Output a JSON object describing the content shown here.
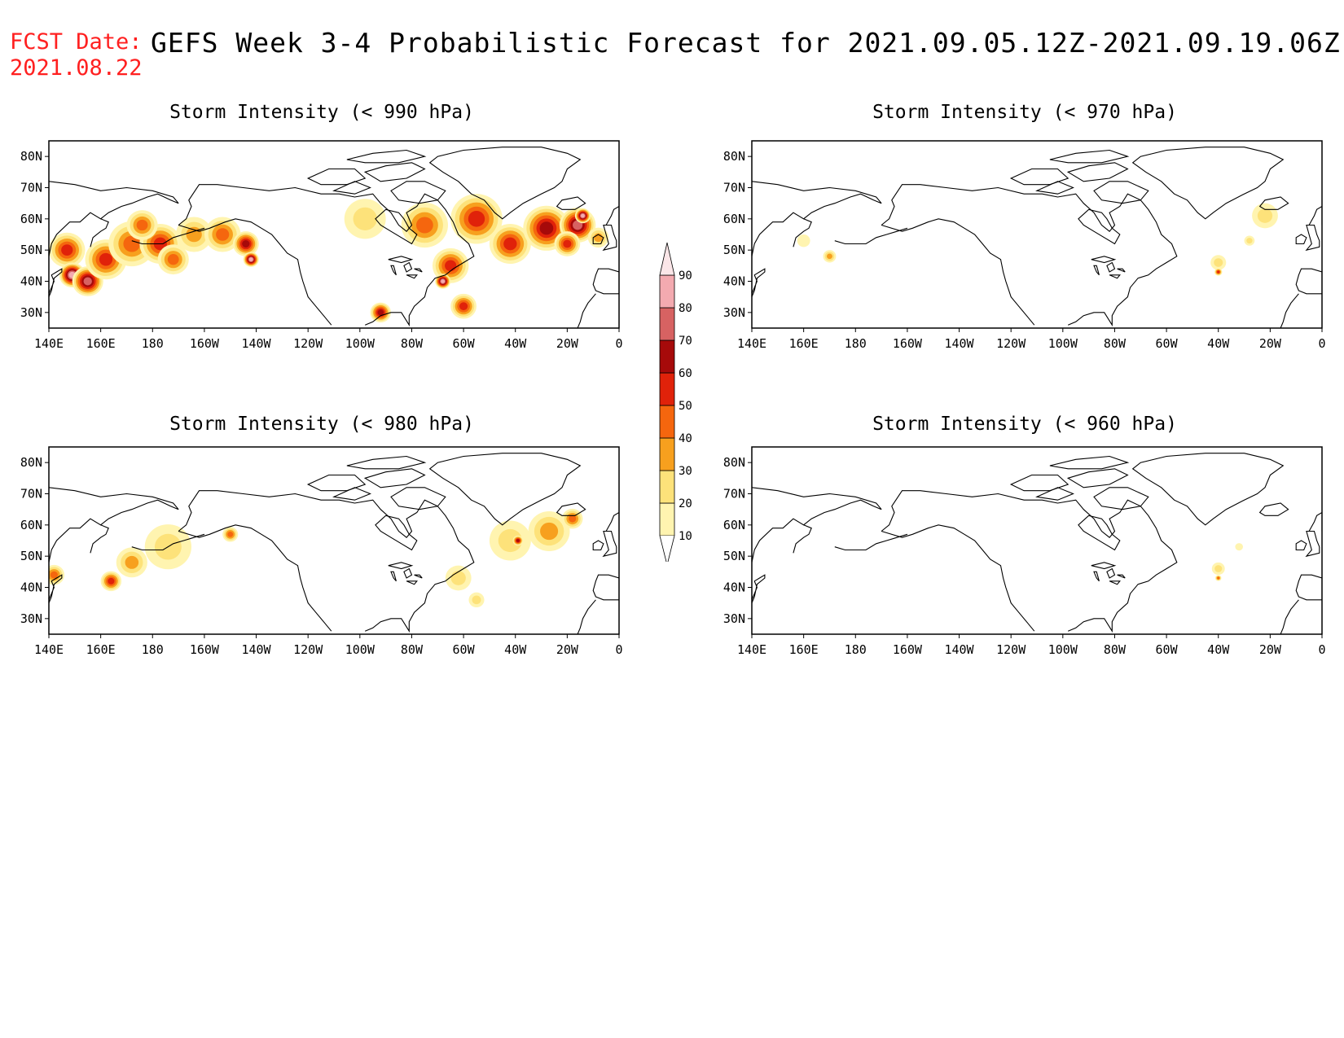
{
  "header": {
    "fcst_label": "FCST Date:",
    "fcst_date": "2021.08.22",
    "title": "GEFS Week 3-4 Probabilistic Forecast for 2021.09.05.12Z-2021.09.19.06Z"
  },
  "panels": [
    {
      "id": "p990",
      "title": "Storm Intensity (< 990 hPa)"
    },
    {
      "id": "p970",
      "title": "Storm Intensity (< 970 hPa)"
    },
    {
      "id": "p980",
      "title": "Storm Intensity (< 980 hPa)"
    },
    {
      "id": "p960",
      "title": "Storm Intensity (< 960 hPa)"
    }
  ],
  "axes": {
    "lon_labels": [
      "140E",
      "160E",
      "180",
      "160W",
      "140W",
      "120W",
      "100W",
      "80W",
      "60W",
      "40W",
      "20W",
      "0"
    ],
    "lat_labels": [
      "80N",
      "70N",
      "60N",
      "50N",
      "40N",
      "30N"
    ]
  },
  "colorbar": {
    "levels": [
      "10",
      "20",
      "30",
      "40",
      "50",
      "60",
      "70",
      "80",
      "90"
    ],
    "colors": [
      "#fff4b0",
      "#fde27a",
      "#f7a01e",
      "#f5660e",
      "#e0220a",
      "#a60a0a",
      "#d76262",
      "#f3aab0",
      "#fbe6e8"
    ]
  },
  "chart_data": {
    "type": "heatmap",
    "units": "probability (%)",
    "lon_range": [
      140,
      360
    ],
    "lat_range": [
      25,
      85
    ],
    "panels": [
      {
        "title": "Storm Intensity (< 990 hPa)",
        "blobs": [
          {
            "lon": 147,
            "lat": 50,
            "r": 7,
            "v": 50
          },
          {
            "lon": 149,
            "lat": 42,
            "r": 5,
            "v": 80
          },
          {
            "lon": 155,
            "lat": 40,
            "r": 6,
            "v": 70
          },
          {
            "lon": 162,
            "lat": 47,
            "r": 8,
            "v": 50
          },
          {
            "lon": 172,
            "lat": 52,
            "r": 9,
            "v": 40
          },
          {
            "lon": 183,
            "lat": 52,
            "r": 8,
            "v": 50
          },
          {
            "lon": 176,
            "lat": 58,
            "r": 6,
            "v": 40
          },
          {
            "lon": 188,
            "lat": 47,
            "r": 6,
            "v": 40
          },
          {
            "lon": 196,
            "lat": 55,
            "r": 7,
            "v": 30
          },
          {
            "lon": 207,
            "lat": 55,
            "r": 7,
            "v": 40
          },
          {
            "lon": 216,
            "lat": 52,
            "r": 5,
            "v": 60
          },
          {
            "lon": 218,
            "lat": 47,
            "r": 3,
            "v": 80
          },
          {
            "lon": 262,
            "lat": 60,
            "r": 8,
            "v": 20
          },
          {
            "lon": 268,
            "lat": 30,
            "r": 4,
            "v": 60
          },
          {
            "lon": 285,
            "lat": 58,
            "r": 9,
            "v": 40
          },
          {
            "lon": 295,
            "lat": 45,
            "r": 7,
            "v": 50
          },
          {
            "lon": 292,
            "lat": 40,
            "r": 3,
            "v": 80
          },
          {
            "lon": 300,
            "lat": 32,
            "r": 5,
            "v": 50
          },
          {
            "lon": 305,
            "lat": 60,
            "r": 10,
            "v": 50
          },
          {
            "lon": 318,
            "lat": 52,
            "r": 8,
            "v": 50
          },
          {
            "lon": 332,
            "lat": 57,
            "r": 9,
            "v": 60
          },
          {
            "lon": 344,
            "lat": 58,
            "r": 7,
            "v": 70
          },
          {
            "lon": 346,
            "lat": 61,
            "r": 3,
            "v": 80
          },
          {
            "lon": 340,
            "lat": 52,
            "r": 5,
            "v": 50
          },
          {
            "lon": 352,
            "lat": 54,
            "r": 4,
            "v": 30
          }
        ]
      },
      {
        "title": "Storm Intensity (< 970 hPa)",
        "blobs": [
          {
            "lon": 170,
            "lat": 48,
            "r": 2.5,
            "v": 30
          },
          {
            "lon": 160,
            "lat": 53,
            "r": 2.5,
            "v": 10
          },
          {
            "lon": 320,
            "lat": 46,
            "r": 3,
            "v": 20
          },
          {
            "lon": 320,
            "lat": 43,
            "r": 1.5,
            "v": 50
          },
          {
            "lon": 338,
            "lat": 61,
            "r": 5,
            "v": 20
          },
          {
            "lon": 332,
            "lat": 53,
            "r": 2,
            "v": 20
          }
        ]
      },
      {
        "title": "Storm Intensity (< 980 hPa)",
        "blobs": [
          {
            "lon": 142,
            "lat": 44,
            "r": 4,
            "v": 40
          },
          {
            "lon": 164,
            "lat": 42,
            "r": 4,
            "v": 50
          },
          {
            "lon": 172,
            "lat": 48,
            "r": 6,
            "v": 30
          },
          {
            "lon": 186,
            "lat": 53,
            "r": 9,
            "v": 20
          },
          {
            "lon": 210,
            "lat": 57,
            "r": 3,
            "v": 40
          },
          {
            "lon": 298,
            "lat": 43,
            "r": 5,
            "v": 20
          },
          {
            "lon": 305,
            "lat": 36,
            "r": 3,
            "v": 20
          },
          {
            "lon": 318,
            "lat": 55,
            "r": 8,
            "v": 20
          },
          {
            "lon": 333,
            "lat": 58,
            "r": 8,
            "v": 30
          },
          {
            "lon": 342,
            "lat": 62,
            "r": 4,
            "v": 40
          },
          {
            "lon": 321,
            "lat": 55,
            "r": 2,
            "v": 60
          }
        ]
      },
      {
        "title": "Storm Intensity (< 960 hPa)",
        "blobs": [
          {
            "lon": 320,
            "lat": 46,
            "r": 2.5,
            "v": 20
          },
          {
            "lon": 320,
            "lat": 43,
            "r": 1.2,
            "v": 40
          },
          {
            "lon": 328,
            "lat": 53,
            "r": 1.5,
            "v": 10
          }
        ]
      }
    ]
  }
}
